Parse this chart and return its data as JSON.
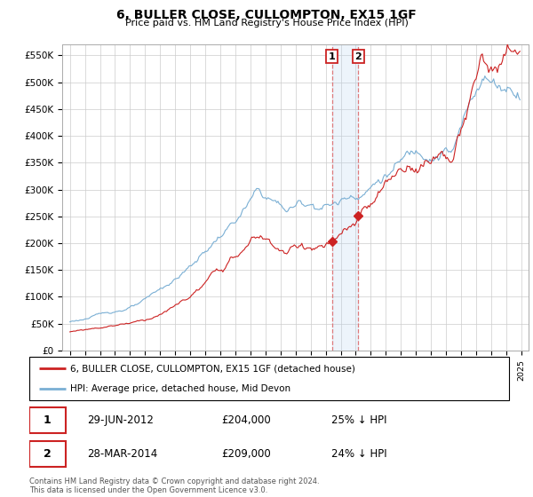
{
  "title": "6, BULLER CLOSE, CULLOMPTON, EX15 1GF",
  "subtitle": "Price paid vs. HM Land Registry's House Price Index (HPI)",
  "hpi_color": "#7aafd4",
  "price_color": "#cc2222",
  "annotation_box_color": "#cc2222",
  "highlight_fill": "#ddeeff",
  "highlight_line_color": "#dd6666",
  "legend_label_red": "6, BULLER CLOSE, CULLOMPTON, EX15 1GF (detached house)",
  "legend_label_blue": "HPI: Average price, detached house, Mid Devon",
  "transaction1_date": "29-JUN-2012",
  "transaction1_price": "£204,000",
  "transaction1_pct": "25% ↓ HPI",
  "transaction2_date": "28-MAR-2014",
  "transaction2_price": "£209,000",
  "transaction2_pct": "24% ↓ HPI",
  "footer": "Contains HM Land Registry data © Crown copyright and database right 2024.\nThis data is licensed under the Open Government Licence v3.0.",
  "ylim": [
    0,
    570000
  ],
  "yticks": [
    0,
    50000,
    100000,
    150000,
    200000,
    250000,
    300000,
    350000,
    400000,
    450000,
    500000,
    550000
  ],
  "ytick_labels": [
    "£0",
    "£50K",
    "£100K",
    "£150K",
    "£200K",
    "£250K",
    "£300K",
    "£350K",
    "£400K",
    "£450K",
    "£500K",
    "£550K"
  ],
  "t1_year": 2012.5,
  "t2_year": 2014.25,
  "t1_price": 204000,
  "t2_price": 209000,
  "hpi_t1": 272000,
  "hpi_t2": 275000
}
